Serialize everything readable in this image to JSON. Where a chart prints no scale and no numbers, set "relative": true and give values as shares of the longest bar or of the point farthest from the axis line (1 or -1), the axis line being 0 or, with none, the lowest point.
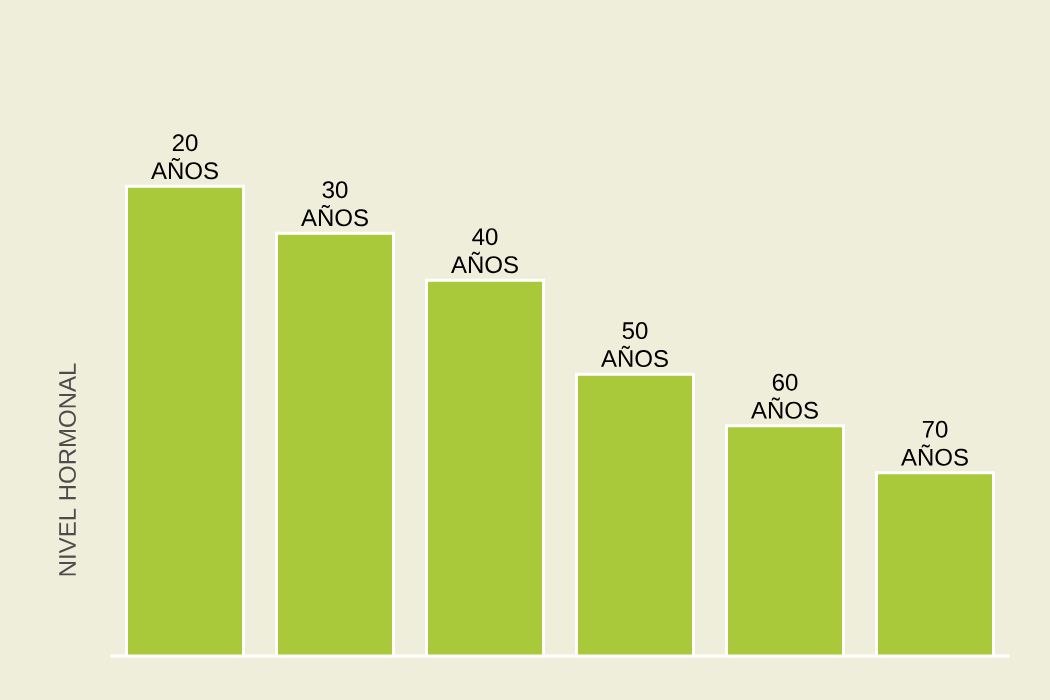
{
  "chart_data": {
    "type": "bar",
    "relative": true,
    "ylabel": "NIVEL HORMONAL",
    "categories": [
      "20 AÑOS",
      "30 AÑOS",
      "40 AÑOS",
      "50 AÑOS",
      "60 AÑOS",
      "70 AÑOS"
    ],
    "values": [
      1,
      0.9,
      0.8,
      0.6,
      0.49,
      0.39
    ],
    "color": "#a9c93a"
  }
}
